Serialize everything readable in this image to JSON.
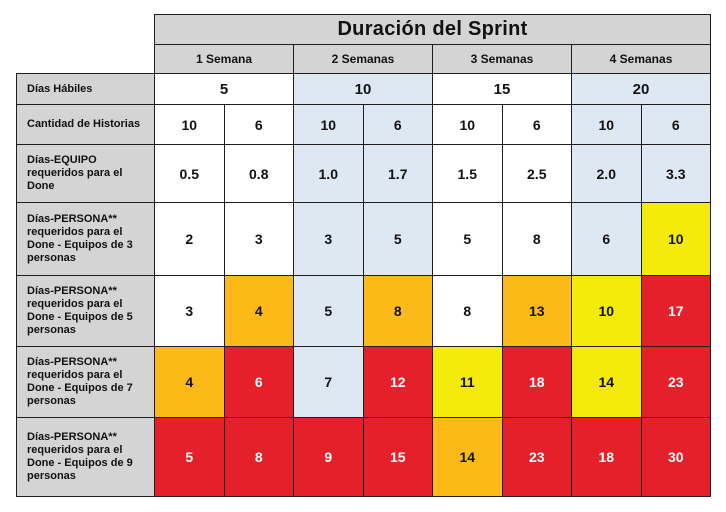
{
  "title": "Duración del Sprint",
  "weeks": [
    "1 Semana",
    "2 Semanas",
    "3 Semanas",
    "4 Semanas"
  ],
  "rows": [
    {
      "label": "Días Hábiles",
      "cells": [
        "5",
        "10",
        "15",
        "20"
      ]
    },
    {
      "label": "Cantidad de Historias",
      "cells": [
        "10",
        "6",
        "10",
        "6",
        "10",
        "6",
        "10",
        "6"
      ]
    },
    {
      "label": "Días-EQUIPO requeridos para el Done",
      "cells": [
        "0.5",
        "0.8",
        "1.0",
        "1.7",
        "1.5",
        "2.5",
        "2.0",
        "3.3"
      ]
    },
    {
      "label": "Días-PERSONA** requeridos para el Done - Equipos de 3 personas",
      "cells": [
        "2",
        "3",
        "3",
        "5",
        "5",
        "8",
        "6",
        "10"
      ]
    },
    {
      "label": "Días-PERSONA** requeridos para el Done - Equipos de 5 personas",
      "cells": [
        "3",
        "4",
        "5",
        "8",
        "8",
        "13",
        "10",
        "17"
      ]
    },
    {
      "label": "Días-PERSONA** requeridos para el Done - Equipos de 7 personas",
      "cells": [
        "4",
        "6",
        "7",
        "12",
        "11",
        "18",
        "14",
        "23"
      ]
    },
    {
      "label": "Días-PERSONA** requeridos para el Done - Equipos de 9 personas",
      "cells": [
        "5",
        "8",
        "9",
        "15",
        "14",
        "23",
        "18",
        "30"
      ]
    }
  ],
  "colors": {
    "header_gray": "#d4d4d4",
    "white": "#ffffff",
    "light_blue": "#dde8f3",
    "yellow": "#f4ea0c",
    "orange": "#fbba17",
    "red": "#e4202a"
  }
}
